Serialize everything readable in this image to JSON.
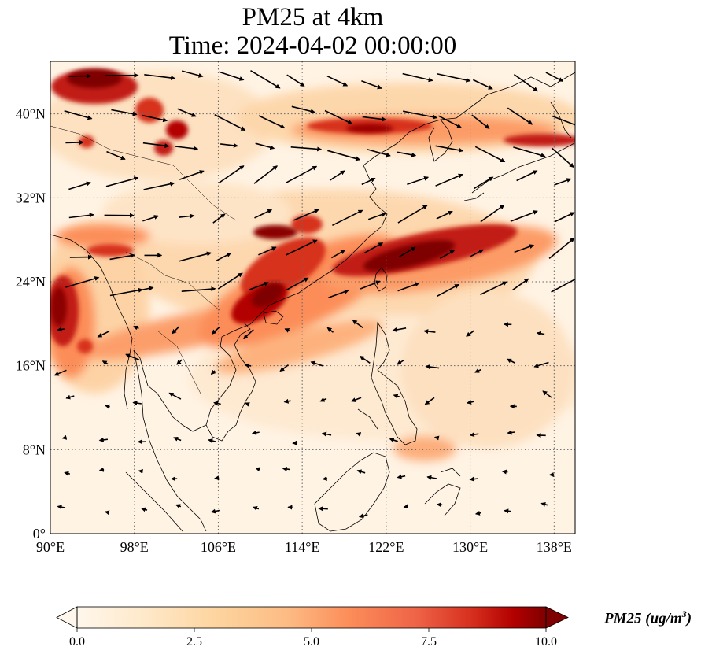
{
  "title": {
    "line1": "PM25 at 4km",
    "line2": "Time: 2024-04-02 00:00:00"
  },
  "map": {
    "projection": "PlateCarree",
    "extent": {
      "lon": [
        90,
        140
      ],
      "lat": [
        0,
        45
      ]
    },
    "gridlines": "dotted",
    "lon_ticks": [
      "90°E",
      "98°E",
      "106°E",
      "114°E",
      "122°E",
      "130°E",
      "138°E"
    ],
    "lat_ticks": [
      "0°",
      "8°N",
      "16°N",
      "24°N",
      "32°N",
      "40°N"
    ],
    "field": "PM25",
    "overlay": "wind vectors (quiver)"
  },
  "colorbar": {
    "cmap": "OrRd",
    "range": [
      0,
      10
    ],
    "extend": "both",
    "ticks": [
      "0.0",
      "2.5",
      "5.0",
      "7.5",
      "10.0"
    ],
    "label_text": "PM25 (ug/m",
    "label_sup": "3",
    "label_close": ")"
  },
  "colors": {
    "low": "#fff7ec",
    "mid": "#fdbb84",
    "high": "#d7301f",
    "max": "#7f0000"
  }
}
